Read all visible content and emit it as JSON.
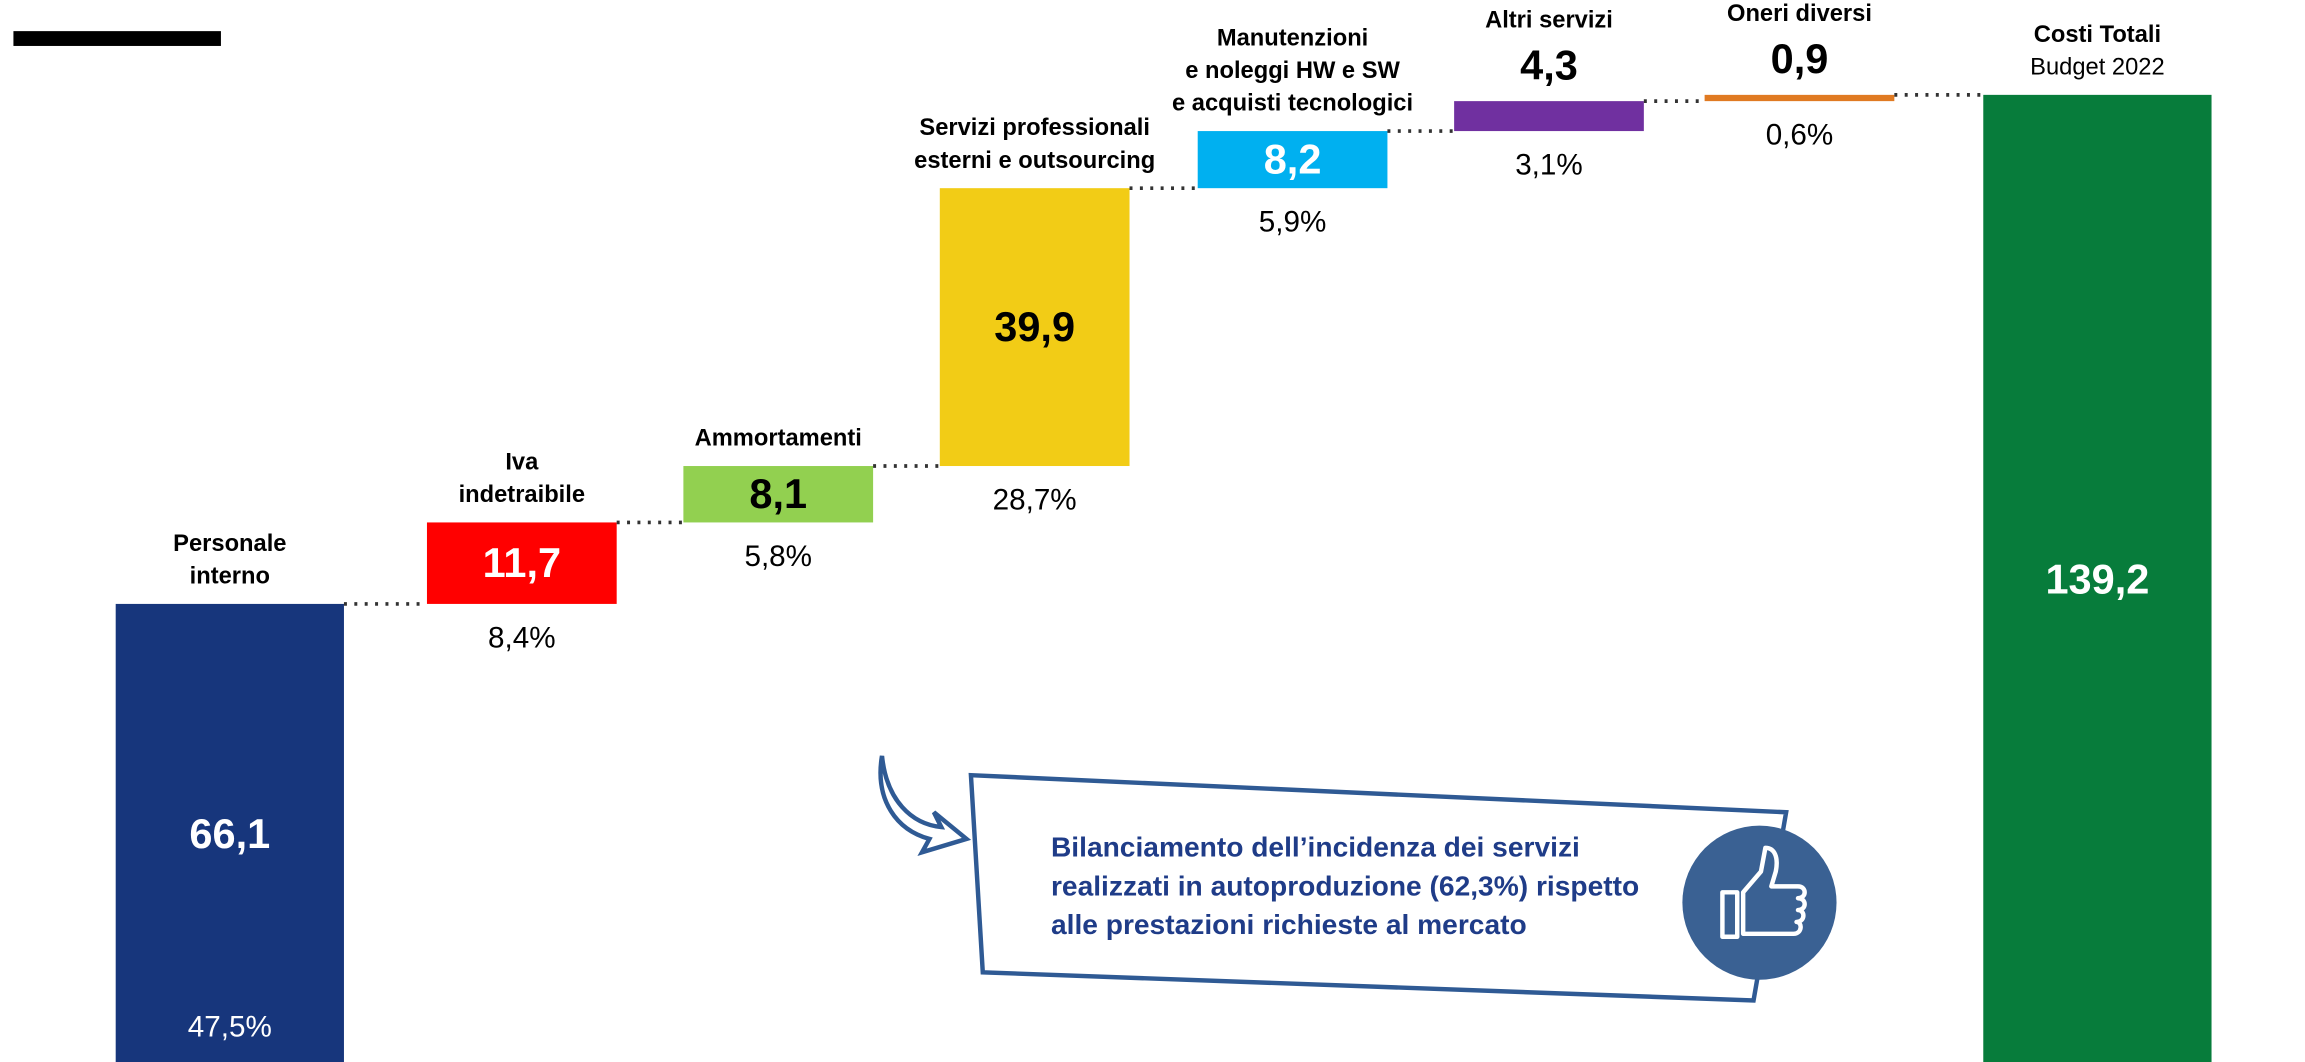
{
  "chart_data": {
    "type": "waterfall",
    "categories": [
      [
        "Personale",
        "interno"
      ],
      [
        "Iva",
        "indetraibile"
      ],
      [
        "Ammortamenti"
      ],
      [
        "Servizi professionali",
        "esterni e outsourcing"
      ],
      [
        "Manutenzioni",
        "e noleggi HW e SW",
        "e acquisti tecnologici"
      ],
      [
        "Altri servizi"
      ],
      [
        "Oneri diversi"
      ],
      [
        "Costi Totali",
        "Budget 2022"
      ]
    ],
    "values": [
      66.1,
      11.7,
      8.1,
      39.9,
      8.2,
      4.3,
      0.9,
      139.2
    ],
    "value_labels": [
      "66,1",
      "11,7",
      "8,1",
      "39,9",
      "8,2",
      "4,3",
      "0,9",
      "139,2"
    ],
    "measure": [
      "relative",
      "relative",
      "relative",
      "relative",
      "relative",
      "relative",
      "relative",
      "total"
    ],
    "shares": [
      47.5,
      8.4,
      5.8,
      28.7,
      5.9,
      3.1,
      0.6,
      null
    ],
    "share_labels": [
      "47,5%",
      "8,4%",
      "5,8%",
      "28,7%",
      "5,9%",
      "3,1%",
      "0,6%",
      null
    ],
    "colors": [
      "#17367c",
      "#ff0000",
      "#92d050",
      "#f2cc16",
      "#00b0f0",
      "#7030a0",
      "#e07a22",
      "#077c3b"
    ],
    "annotation": [
      "Bilanciamento dell’incidenza dei servizi",
      "realizzati in autoproduzione (62,3%) rispetto",
      "alle prestazioni richieste al mercato"
    ]
  }
}
